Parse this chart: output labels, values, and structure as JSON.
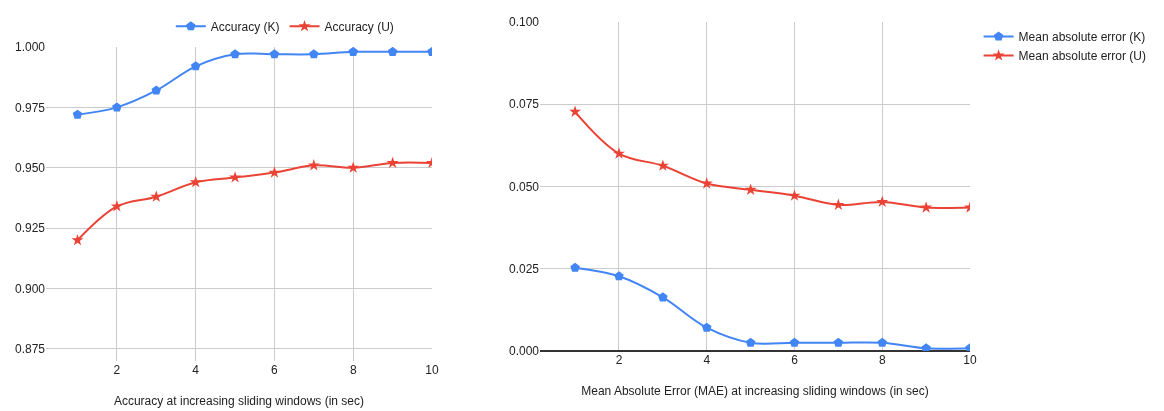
{
  "chart_data": [
    {
      "type": "line",
      "xlabel": "Accuracy at increasing sliding windows (in sec)",
      "x": [
        1,
        2,
        3,
        4,
        5,
        6,
        7,
        8,
        9,
        10
      ],
      "xlim": [
        0.2,
        10
      ],
      "xticks": [
        2,
        4,
        6,
        8,
        10
      ],
      "ylim": [
        0.87,
        1.0
      ],
      "yticks": [
        {
          "value": 0.875,
          "label": "0.875"
        },
        {
          "value": 0.9,
          "label": "0.900"
        },
        {
          "value": 0.925,
          "label": "0.925"
        },
        {
          "value": 0.95,
          "label": "0.950"
        },
        {
          "value": 0.975,
          "label": "0.975"
        },
        {
          "value": 1.0,
          "label": "1.000"
        }
      ],
      "grid": true,
      "legend": "top",
      "series": [
        {
          "name": "Accuracy (K)",
          "color": "#4285f4",
          "marker": "circle",
          "values": [
            0.972,
            0.975,
            0.982,
            0.992,
            0.997,
            0.997,
            0.997,
            0.998,
            0.998,
            0.998
          ]
        },
        {
          "name": "Accuracy (U)",
          "color": "#ea4335",
          "marker": "star",
          "values": [
            0.92,
            0.934,
            0.938,
            0.944,
            0.946,
            0.948,
            0.951,
            0.95,
            0.952,
            0.952
          ]
        }
      ]
    },
    {
      "type": "line",
      "xlabel": "Mean Absolute Error (MAE) at increasing sliding windows (in sec)",
      "x": [
        1,
        2,
        3,
        4,
        5,
        6,
        7,
        8,
        9,
        10
      ],
      "xlim": [
        0.2,
        10
      ],
      "xticks": [
        2,
        4,
        6,
        8,
        10
      ],
      "ylim": [
        0,
        0.1
      ],
      "yticks": [
        {
          "value": 0,
          "label": "0.000"
        },
        {
          "value": 0.025,
          "label": "0.025"
        },
        {
          "value": 0.05,
          "label": "0.050"
        },
        {
          "value": 0.075,
          "label": "0.075"
        },
        {
          "value": 0.1,
          "label": "0.100"
        }
      ],
      "grid": true,
      "legend": "right",
      "series": [
        {
          "name": "Mean absolute error (K)",
          "color": "#4285f4",
          "marker": "circle",
          "values": [
            0.0253,
            0.0227,
            0.0163,
            0.0071,
            0.0025,
            0.0025,
            0.0025,
            0.0025,
            0.0008,
            0.0008
          ]
        },
        {
          "name": "Mean absolute error (U)",
          "color": "#ea4335",
          "marker": "star",
          "values": [
            0.0727,
            0.06,
            0.0563,
            0.0509,
            0.049,
            0.0472,
            0.0444,
            0.0453,
            0.0436,
            0.0436
          ]
        }
      ]
    }
  ]
}
